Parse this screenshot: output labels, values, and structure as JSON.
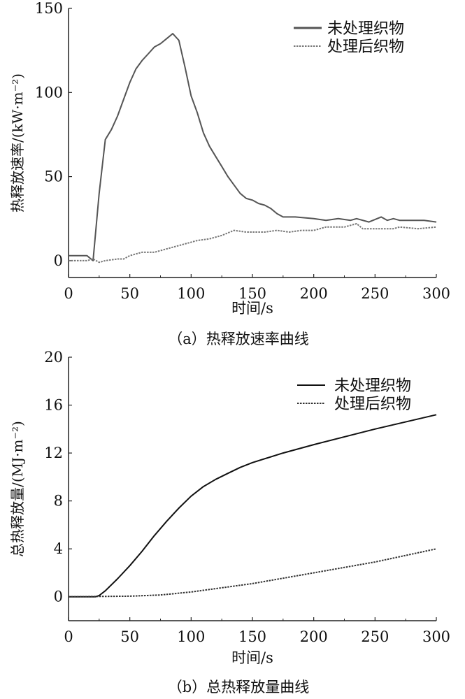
{
  "chart_data": [
    {
      "type": "line",
      "title": "",
      "caption": "（a）热释放速率曲线",
      "xlabel": "时间/s",
      "ylabel": "热释放速率/(kW·m⁻²)",
      "xlim": [
        0,
        300
      ],
      "ylim": [
        -10,
        150
      ],
      "xticks": [
        0,
        50,
        100,
        150,
        200,
        250,
        300
      ],
      "yticks": [
        0,
        50,
        100,
        150
      ],
      "grid": false,
      "legend_position": "top-right",
      "series": [
        {
          "name": "未处理织物",
          "style": "solid",
          "color": "#555555",
          "x": [
            0,
            15,
            20,
            25,
            30,
            35,
            40,
            45,
            50,
            55,
            60,
            65,
            70,
            75,
            80,
            85,
            90,
            95,
            100,
            105,
            110,
            115,
            120,
            125,
            130,
            135,
            140,
            145,
            150,
            155,
            160,
            165,
            170,
            175,
            185,
            200,
            210,
            220,
            230,
            235,
            245,
            255,
            260,
            265,
            270,
            280,
            290,
            300
          ],
          "y": [
            3,
            3,
            0,
            40,
            72,
            78,
            86,
            96,
            106,
            114,
            119,
            123,
            127,
            129,
            132,
            135,
            131,
            115,
            98,
            88,
            76,
            68,
            62,
            56,
            50,
            45,
            40,
            37,
            36,
            34,
            33,
            31,
            28,
            26,
            26,
            25,
            24,
            25,
            24,
            25,
            23,
            26,
            24,
            25,
            24,
            24,
            24,
            23
          ]
        },
        {
          "name": "处理后织物",
          "style": "dotted",
          "color": "#777777",
          "x": [
            0,
            15,
            20,
            25,
            30,
            40,
            45,
            50,
            55,
            60,
            70,
            75,
            85,
            95,
            105,
            115,
            125,
            135,
            145,
            160,
            170,
            180,
            190,
            200,
            210,
            225,
            235,
            240,
            265,
            270,
            285,
            300
          ],
          "y": [
            0,
            0,
            1,
            -1,
            0,
            1,
            1,
            3,
            4,
            5,
            5,
            6,
            8,
            10,
            12,
            13,
            15,
            18,
            17,
            17,
            18,
            17,
            18,
            18,
            20,
            20,
            22,
            19,
            19,
            20,
            19,
            20
          ]
        }
      ]
    },
    {
      "type": "line",
      "title": "",
      "caption": "（b）总热释放量曲线",
      "xlabel": "时间/s",
      "ylabel": "总热释放量/(MJ·m⁻²)",
      "xlim": [
        0,
        300
      ],
      "ylim": [
        -2,
        20
      ],
      "xticks": [
        0,
        50,
        100,
        150,
        200,
        250,
        300
      ],
      "yticks": [
        0,
        4,
        8,
        12,
        16,
        20
      ],
      "grid": false,
      "legend_position": "top-right",
      "series": [
        {
          "name": "未处理织物",
          "style": "solid",
          "color": "#111111",
          "x": [
            0,
            22,
            25,
            30,
            40,
            50,
            60,
            70,
            80,
            90,
            100,
            110,
            120,
            130,
            140,
            150,
            175,
            200,
            250,
            300
          ],
          "y": [
            0,
            0,
            0.1,
            0.5,
            1.5,
            2.6,
            3.8,
            5.1,
            6.3,
            7.4,
            8.4,
            9.2,
            9.8,
            10.3,
            10.8,
            11.2,
            12.0,
            12.7,
            14.0,
            15.2
          ]
        },
        {
          "name": "处理后织物",
          "style": "dotted",
          "color": "#333333",
          "x": [
            0,
            50,
            75,
            100,
            150,
            200,
            250,
            300
          ],
          "y": [
            0,
            0.05,
            0.15,
            0.4,
            1.1,
            2.0,
            2.9,
            4.0
          ]
        }
      ]
    }
  ]
}
